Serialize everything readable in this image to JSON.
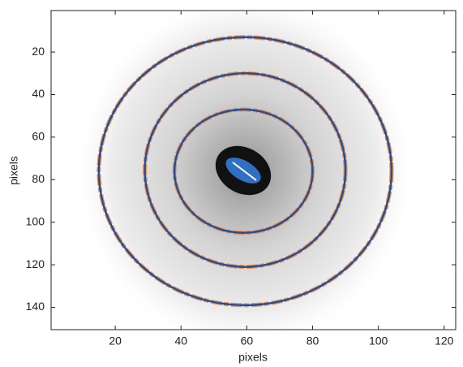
{
  "chart_data": {
    "type": "image",
    "xlabel": "pixels",
    "ylabel": "pixels",
    "xlim": [
      0.5,
      123.5
    ],
    "ylim": [
      0.5,
      150.5
    ],
    "y_inverted": true,
    "xticks": [
      20,
      40,
      60,
      80,
      100,
      120
    ],
    "yticks": [
      20,
      40,
      60,
      80,
      100,
      120,
      140
    ],
    "contour_color": "#f08a3c",
    "fit_color": "#1f4fa0",
    "rings": [
      {
        "cx": 59,
        "cy": 76,
        "rx": 21,
        "ry": 29
      },
      {
        "cx": 59.5,
        "cy": 75.5,
        "rx": 30.5,
        "ry": 45.5
      },
      {
        "cx": 59.5,
        "cy": 76,
        "rx": 44.5,
        "ry": 63
      }
    ]
  }
}
